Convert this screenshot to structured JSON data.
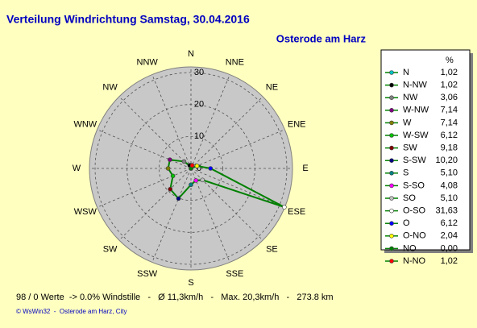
{
  "chart_data": {
    "type": "radar",
    "title": "Verteilung Windrichtung   Samstag, 30.04.2016",
    "subtitle": "Osterode am Harz",
    "direction_labels": [
      "N",
      "NNE",
      "NE",
      "ENE",
      "E",
      "ESE",
      "SE",
      "SSE",
      "S",
      "SSW",
      "SW",
      "WSW",
      "W",
      "WNW",
      "NW",
      "NNW"
    ],
    "categories": [
      "N",
      "N-NW",
      "NW",
      "W-NW",
      "W",
      "W-SW",
      "SW",
      "S-SW",
      "S",
      "S-SO",
      "SO",
      "O-SO",
      "O",
      "O-NO",
      "NO",
      "N-NO"
    ],
    "values": [
      1.02,
      1.02,
      3.06,
      7.14,
      7.14,
      6.12,
      9.18,
      10.2,
      5.1,
      4.08,
      5.1,
      31.63,
      6.12,
      2.04,
      0.0,
      1.02
    ],
    "value_labels": [
      "1,02",
      "1,02",
      "3,06",
      "7,14",
      "7,14",
      "6,12",
      "9,18",
      "10,20",
      "5,10",
      "4,08",
      "5,10",
      "31,63",
      "6,12",
      "2,04",
      "0,00",
      "1,02"
    ],
    "colors": [
      "#00c0c0",
      "#000000",
      "#808080",
      "#800080",
      "#808000",
      "#00c000",
      "#800000",
      "#000080",
      "#008080",
      "#ff00ff",
      "#c0c0c0",
      "#ffffff",
      "#0000ff",
      "#ffff00",
      "#008000",
      "#ff0000"
    ],
    "line_color": "#008000",
    "legend_unit": "%",
    "rlim": [
      0,
      30
    ],
    "rticks": [
      0,
      10,
      20,
      30
    ],
    "grid": true,
    "footer": "98 / 0 Werte  -> 0.0% Windstille   -   Ø 11,3km/h   -   Max. 20,3km/h   -   273.8 km",
    "copyright": "© WsWin32  -  Osterode am Harz, City"
  }
}
